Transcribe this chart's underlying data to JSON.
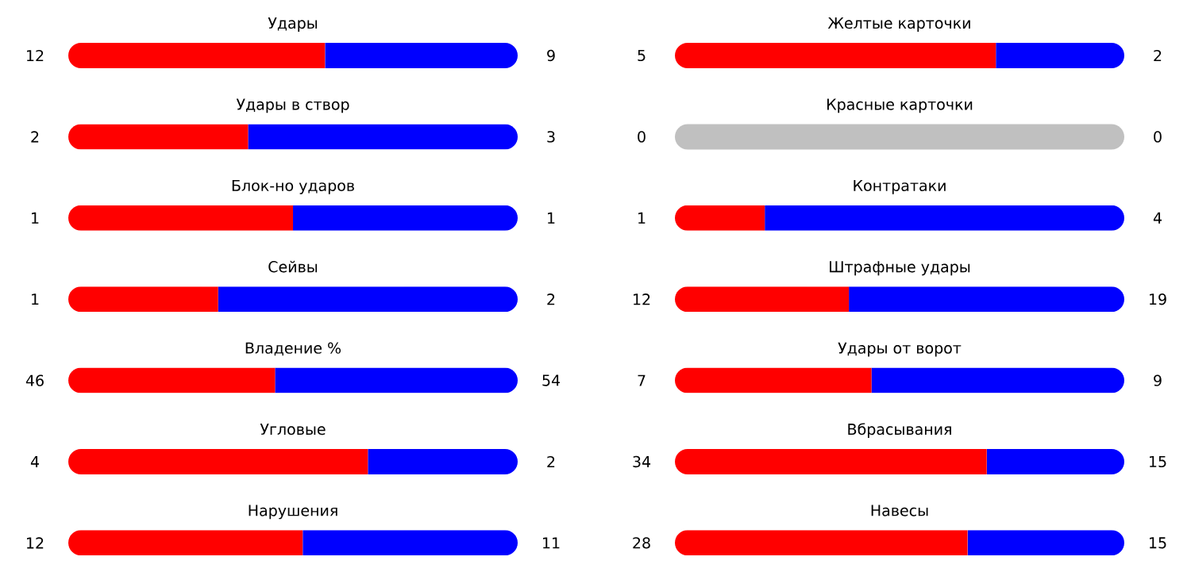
{
  "chart_data": [
    {
      "type": "bar",
      "orientation": "horizontal",
      "stacked": true,
      "data_labels": true,
      "title": "Удары",
      "categories": [
        null
      ],
      "series": [
        {
          "color": "#ff0000",
          "values": [
            12
          ]
        },
        {
          "color": "#0000ff",
          "values": [
            9
          ]
        }
      ]
    },
    {
      "type": "bar",
      "orientation": "horizontal",
      "stacked": true,
      "data_labels": true,
      "title": "Удары в створ",
      "categories": [
        null
      ],
      "series": [
        {
          "color": "#ff0000",
          "values": [
            2
          ]
        },
        {
          "color": "#0000ff",
          "values": [
            3
          ]
        }
      ]
    },
    {
      "type": "bar",
      "orientation": "horizontal",
      "stacked": true,
      "data_labels": true,
      "title": "Блок-но ударов",
      "categories": [
        null
      ],
      "series": [
        {
          "color": "#ff0000",
          "values": [
            1
          ]
        },
        {
          "color": "#0000ff",
          "values": [
            1
          ]
        }
      ]
    },
    {
      "type": "bar",
      "orientation": "horizontal",
      "stacked": true,
      "data_labels": true,
      "title": "Сейвы",
      "categories": [
        null
      ],
      "series": [
        {
          "color": "#ff0000",
          "values": [
            1
          ]
        },
        {
          "color": "#0000ff",
          "values": [
            2
          ]
        }
      ]
    },
    {
      "type": "bar",
      "orientation": "horizontal",
      "stacked": true,
      "data_labels": true,
      "title": "Владение %",
      "categories": [
        null
      ],
      "series": [
        {
          "color": "#ff0000",
          "values": [
            46
          ]
        },
        {
          "color": "#0000ff",
          "values": [
            54
          ]
        }
      ]
    },
    {
      "type": "bar",
      "orientation": "horizontal",
      "stacked": true,
      "data_labels": true,
      "title": "Угловые",
      "categories": [
        null
      ],
      "series": [
        {
          "color": "#ff0000",
          "values": [
            4
          ]
        },
        {
          "color": "#0000ff",
          "values": [
            2
          ]
        }
      ]
    },
    {
      "type": "bar",
      "orientation": "horizontal",
      "stacked": true,
      "data_labels": true,
      "title": "Нарушения",
      "categories": [
        null
      ],
      "series": [
        {
          "color": "#ff0000",
          "values": [
            12
          ]
        },
        {
          "color": "#0000ff",
          "values": [
            11
          ]
        }
      ]
    },
    {
      "type": "bar",
      "orientation": "horizontal",
      "stacked": true,
      "data_labels": true,
      "title": "Желтые карточки",
      "categories": [
        null
      ],
      "series": [
        {
          "color": "#ff0000",
          "values": [
            5
          ]
        },
        {
          "color": "#0000ff",
          "values": [
            2
          ]
        }
      ]
    },
    {
      "type": "other",
      "title": "Красные карточки",
      "annotations": [
        "0",
        "0"
      ]
    },
    {
      "type": "bar",
      "orientation": "horizontal",
      "stacked": true,
      "data_labels": true,
      "title": "Контратаки",
      "categories": [
        null
      ],
      "series": [
        {
          "color": "#ff0000",
          "values": [
            1
          ]
        },
        {
          "color": "#0000ff",
          "values": [
            4
          ]
        }
      ]
    },
    {
      "type": "bar",
      "orientation": "horizontal",
      "stacked": true,
      "data_labels": true,
      "title": "Штрафные удары",
      "categories": [
        null
      ],
      "series": [
        {
          "color": "#ff0000",
          "values": [
            12
          ]
        },
        {
          "color": "#0000ff",
          "values": [
            19
          ]
        }
      ]
    },
    {
      "type": "bar",
      "orientation": "horizontal",
      "stacked": true,
      "data_labels": true,
      "title": "Удары от ворот",
      "categories": [
        null
      ],
      "series": [
        {
          "color": "#ff0000",
          "values": [
            7
          ]
        },
        {
          "color": "#0000ff",
          "values": [
            9
          ]
        }
      ]
    },
    {
      "type": "bar",
      "orientation": "horizontal",
      "stacked": true,
      "data_labels": true,
      "title": "Вбрасывания",
      "categories": [
        null
      ],
      "series": [
        {
          "color": "#ff0000",
          "values": [
            34
          ]
        },
        {
          "color": "#0000ff",
          "values": [
            15
          ]
        }
      ]
    },
    {
      "type": "bar",
      "orientation": "horizontal",
      "stacked": true,
      "data_labels": true,
      "title": "Навесы",
      "categories": [
        null
      ],
      "series": [
        {
          "color": "#ff0000",
          "values": [
            28
          ]
        },
        {
          "color": "#0000ff",
          "values": [
            15
          ]
        }
      ]
    }
  ]
}
